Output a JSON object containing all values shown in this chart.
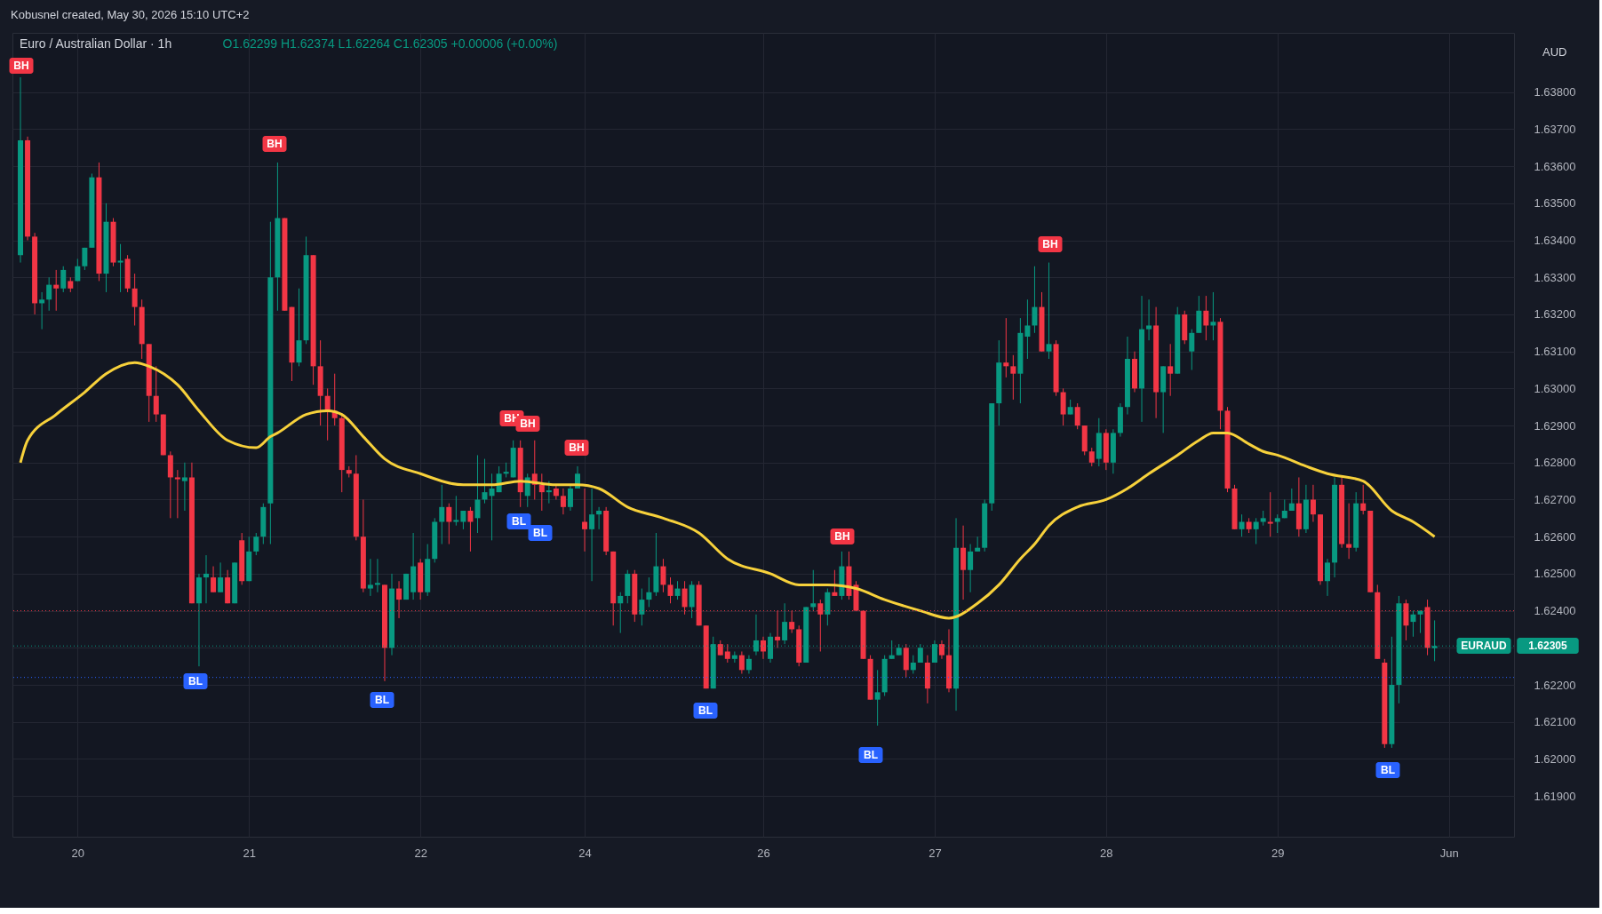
{
  "chart_data": {
    "type": "candlestick",
    "title": "Euro / Australian Dollar · 1h",
    "subtitle": "O1.62299 H1.62374 L1.62264 C1.62305 +0.00006 (+0.00%)",
    "categories": [
      null,
      null,
      null,
      null,
      null,
      null,
      null,
      null,
      "20",
      null,
      null,
      null,
      null,
      null,
      null,
      null,
      null,
      null,
      null,
      null,
      null,
      null,
      null,
      null,
      null,
      null,
      null,
      null,
      null,
      null,
      null,
      null,
      "21",
      null,
      null,
      null,
      null,
      null,
      null,
      null,
      null,
      null,
      null,
      null,
      null,
      null,
      null,
      null,
      null,
      null,
      null,
      null,
      null,
      null,
      null,
      null,
      "22",
      null,
      null,
      null,
      null,
      null,
      null,
      null,
      null,
      null,
      null,
      null,
      null,
      null,
      null,
      null,
      null,
      null,
      null,
      null,
      null,
      null,
      null,
      "24",
      null,
      null,
      null,
      null,
      null,
      null,
      null,
      null,
      null,
      null,
      null,
      null,
      null,
      null,
      null,
      null,
      null,
      null,
      null,
      null,
      null,
      null,
      null,
      null,
      "26",
      null,
      null,
      null,
      null,
      null,
      null,
      null,
      null,
      null,
      null,
      null,
      null,
      null,
      null,
      null,
      null,
      null,
      null,
      null,
      null,
      null,
      null,
      null,
      "27",
      null,
      null,
      null,
      null,
      null,
      null,
      null,
      null,
      null,
      null,
      null,
      null,
      null,
      null,
      null,
      null,
      null,
      null,
      null,
      null,
      null,
      null,
      null,
      "28",
      null,
      null,
      null,
      null,
      null,
      null,
      null,
      null,
      null,
      null,
      null,
      null,
      null,
      null,
      null,
      null,
      null,
      null,
      null,
      null,
      null,
      null,
      null,
      "29",
      null,
      null,
      null,
      null,
      null,
      null,
      null,
      null,
      null,
      null,
      null,
      null,
      null,
      null,
      null,
      null,
      null,
      null,
      null,
      null,
      null,
      null,
      null,
      "Jun",
      null,
      null,
      null,
      null,
      null,
      null,
      null,
      null
    ],
    "ohlc": [
      [
        1.6336,
        1.6384,
        1.6334,
        1.6367
      ],
      [
        1.6367,
        1.6368,
        1.634,
        1.6341
      ],
      [
        1.6341,
        1.6342,
        1.632,
        1.6323
      ],
      [
        1.6323,
        1.6326,
        1.6316,
        1.6324
      ],
      [
        1.6324,
        1.633,
        1.6321,
        1.6328
      ],
      [
        1.6328,
        1.6332,
        1.6321,
        1.6327
      ],
      [
        1.6327,
        1.6333,
        1.6326,
        1.6332
      ],
      [
        1.6329,
        1.633,
        1.6326,
        1.6327
      ],
      [
        1.6329,
        1.6335,
        1.6329,
        1.6333
      ],
      [
        1.6333,
        1.6338,
        1.6332,
        1.6338
      ],
      [
        1.6338,
        1.6358,
        1.6338,
        1.6357
      ],
      [
        1.6357,
        1.6361,
        1.6329,
        1.6331
      ],
      [
        1.6331,
        1.635,
        1.6326,
        1.6345
      ],
      [
        1.6345,
        1.6346,
        1.6333,
        1.6334
      ],
      [
        1.6334,
        1.6339,
        1.6326,
        1.63345
      ],
      [
        1.6335,
        1.6336,
        1.6326,
        1.6327
      ],
      [
        1.6327,
        1.6331,
        1.6317,
        1.6322
      ],
      [
        1.6322,
        1.6324,
        1.6308,
        1.6312
      ],
      [
        1.6312,
        1.6312,
        1.6291,
        1.6298
      ],
      [
        1.6298,
        1.6306,
        1.6291,
        1.6293
      ],
      [
        1.6293,
        1.6293,
        1.6282,
        1.6282
      ],
      [
        1.6282,
        1.6283,
        1.6265,
        1.6276
      ],
      [
        1.6276,
        1.6278,
        1.6265,
        1.62755
      ],
      [
        1.6275,
        1.628,
        1.6267,
        1.6276
      ],
      [
        1.6276,
        1.628,
        1.6242,
        1.6242
      ],
      [
        1.6242,
        1.625,
        1.6225,
        1.6249
      ],
      [
        1.6249,
        1.6255,
        1.6242,
        1.625
      ],
      [
        1.6249,
        1.6252,
        1.6245,
        1.6245
      ],
      [
        1.6245,
        1.6253,
        1.6245,
        1.6249
      ],
      [
        1.6249,
        1.6251,
        1.6242,
        1.6242
      ],
      [
        1.6242,
        1.6253,
        1.6242,
        1.6253
      ],
      [
        1.6259,
        1.6261,
        1.6247,
        1.6248
      ],
      [
        1.6248,
        1.626,
        1.6248,
        1.6256
      ],
      [
        1.6256,
        1.6261,
        1.6255,
        1.626
      ],
      [
        1.626,
        1.6269,
        1.6258,
        1.6268
      ],
      [
        1.6269,
        1.6345,
        1.6258,
        1.633
      ],
      [
        1.633,
        1.6361,
        1.6321,
        1.6346
      ],
      [
        1.6346,
        1.6346,
        1.6321,
        1.6321
      ],
      [
        1.6322,
        1.6322,
        1.6302,
        1.6307
      ],
      [
        1.6307,
        1.6327,
        1.6306,
        1.6313
      ],
      [
        1.6313,
        1.6341,
        1.6312,
        1.6336
      ],
      [
        1.6336,
        1.6336,
        1.6301,
        1.6306
      ],
      [
        1.6306,
        1.6313,
        1.629,
        1.6298
      ],
      [
        1.6298,
        1.63,
        1.6286,
        1.6294
      ],
      [
        1.6294,
        1.6304,
        1.629,
        1.6292
      ],
      [
        1.6292,
        1.6293,
        1.6272,
        1.6278
      ],
      [
        1.6278,
        1.6279,
        1.6276,
        1.6277
      ],
      [
        1.6277,
        1.6282,
        1.6259,
        1.626
      ],
      [
        1.626,
        1.627,
        1.6245,
        1.6246
      ],
      [
        1.6246,
        1.6254,
        1.6244,
        1.6247
      ],
      [
        1.6247,
        1.6254,
        1.6245,
        1.62475
      ],
      [
        1.6247,
        1.6247,
        1.6221,
        1.623
      ],
      [
        1.623,
        1.625,
        1.6228,
        1.6246
      ],
      [
        1.6246,
        1.6248,
        1.6238,
        1.6243
      ],
      [
        1.6243,
        1.625,
        1.6243,
        1.625
      ],
      [
        1.6245,
        1.6261,
        1.6243,
        1.6252
      ],
      [
        1.6253,
        1.6254,
        1.6243,
        1.6245
      ],
      [
        1.6245,
        1.6258,
        1.6244,
        1.6254
      ],
      [
        1.6254,
        1.6265,
        1.6253,
        1.6264
      ],
      [
        1.6264,
        1.6274,
        1.6258,
        1.6268
      ],
      [
        1.6268,
        1.6269,
        1.6258,
        1.6264
      ],
      [
        1.6264,
        1.6271,
        1.6263,
        1.62645
      ],
      [
        1.6264,
        1.6267,
        1.6262,
        1.6267
      ],
      [
        1.6267,
        1.6268,
        1.6256,
        1.6264
      ],
      [
        1.6265,
        1.6282,
        1.6261,
        1.627
      ],
      [
        1.627,
        1.6281,
        1.6269,
        1.6272
      ],
      [
        1.6271,
        1.6277,
        1.6259,
        1.6273
      ],
      [
        1.6272,
        1.6279,
        1.6272,
        1.6277
      ],
      [
        1.6277,
        1.628,
        1.6276,
        1.62775
      ],
      [
        1.6276,
        1.6286,
        1.6276,
        1.6284
      ],
      [
        1.6284,
        1.6286,
        1.6268,
        1.6272
      ],
      [
        1.6271,
        1.6277,
        1.6268,
        1.6276
      ],
      [
        1.6277,
        1.6286,
        1.627,
        1.6274
      ],
      [
        1.6274,
        1.6277,
        1.6267,
        1.6272
      ],
      [
        1.6272,
        1.6275,
        1.6269,
        1.62725
      ],
      [
        1.6273,
        1.6274,
        1.627,
        1.6271
      ],
      [
        1.6271,
        1.6273,
        1.6266,
        1.6268
      ],
      [
        1.6268,
        1.6274,
        1.6267,
        1.6273
      ],
      [
        1.6273,
        1.6279,
        1.6273,
        1.6277
      ],
      [
        1.6264,
        1.6273,
        1.6256,
        1.6262
      ],
      [
        1.6262,
        1.6273,
        1.6248,
        1.6266
      ],
      [
        1.6266,
        1.6268,
        1.6262,
        1.6267
      ],
      [
        1.6267,
        1.6268,
        1.6255,
        1.6256
      ],
      [
        1.6256,
        1.6256,
        1.6236,
        1.6242
      ],
      [
        1.6242,
        1.6245,
        1.6234,
        1.6244
      ],
      [
        1.6244,
        1.6251,
        1.6242,
        1.625
      ],
      [
        1.625,
        1.6251,
        1.6237,
        1.6239
      ],
      [
        1.6239,
        1.6246,
        1.6236,
        1.6243
      ],
      [
        1.6243,
        1.6249,
        1.6241,
        1.6245
      ],
      [
        1.6245,
        1.6261,
        1.6244,
        1.6252
      ],
      [
        1.6252,
        1.6254,
        1.6245,
        1.6247
      ],
      [
        1.6247,
        1.6249,
        1.6242,
        1.6244
      ],
      [
        1.6244,
        1.6248,
        1.6243,
        1.6246
      ],
      [
        1.6246,
        1.6248,
        1.6239,
        1.6241
      ],
      [
        1.6241,
        1.6248,
        1.6238,
        1.6247
      ],
      [
        1.6247,
        1.6248,
        1.6236,
        1.6236
      ],
      [
        1.6236,
        1.6236,
        1.6219,
        1.6219
      ],
      [
        1.6219,
        1.6233,
        1.6219,
        1.6231
      ],
      [
        1.6231,
        1.6232,
        1.6228,
        1.6228
      ],
      [
        1.6229,
        1.6231,
        1.6226,
        1.6227
      ],
      [
        1.6227,
        1.6229,
        1.6226,
        1.6228
      ],
      [
        1.6228,
        1.6229,
        1.6223,
        1.6224
      ],
      [
        1.6224,
        1.6228,
        1.6223,
        1.6227
      ],
      [
        1.6229,
        1.6239,
        1.6228,
        1.6232
      ],
      [
        1.6232,
        1.6233,
        1.6227,
        1.6229
      ],
      [
        1.6227,
        1.6234,
        1.6226,
        1.6233
      ],
      [
        1.6233,
        1.624,
        1.623,
        1.6232
      ],
      [
        1.6232,
        1.6242,
        1.6231,
        1.6237
      ],
      [
        1.6237,
        1.624,
        1.6234,
        1.6235
      ],
      [
        1.6235,
        1.6236,
        1.6225,
        1.6226
      ],
      [
        1.6226,
        1.6241,
        1.6226,
        1.6241
      ],
      [
        1.6241,
        1.6251,
        1.624,
        1.6242
      ],
      [
        1.6242,
        1.6243,
        1.6229,
        1.6239
      ],
      [
        1.6239,
        1.6246,
        1.6236,
        1.6245
      ],
      [
        1.6245,
        1.6251,
        1.6244,
        1.6244
      ],
      [
        1.6244,
        1.6256,
        1.6243,
        1.6252
      ],
      [
        1.6252,
        1.6256,
        1.6243,
        1.6244
      ],
      [
        1.6247,
        1.6248,
        1.624,
        1.624
      ],
      [
        1.624,
        1.624,
        1.6227,
        1.6227
      ],
      [
        1.6227,
        1.6228,
        1.6216,
        1.6216
      ],
      [
        1.6216,
        1.6224,
        1.6209,
        1.6218
      ],
      [
        1.6218,
        1.6228,
        1.6217,
        1.6227
      ],
      [
        1.6227,
        1.6232,
        1.6227,
        1.6228
      ],
      [
        1.6228,
        1.6231,
        1.6228,
        1.623
      ],
      [
        1.623,
        1.6231,
        1.6222,
        1.6224
      ],
      [
        1.6224,
        1.6228,
        1.6223,
        1.6226
      ],
      [
        1.6226,
        1.6231,
        1.6226,
        1.623
      ],
      [
        1.6226,
        1.6228,
        1.6215,
        1.6219
      ],
      [
        1.6226,
        1.6232,
        1.6226,
        1.6231
      ],
      [
        1.6231,
        1.6232,
        1.6227,
        1.6228
      ],
      [
        1.6228,
        1.6235,
        1.6218,
        1.6219
      ],
      [
        1.6219,
        1.6265,
        1.6213,
        1.6257
      ],
      [
        1.6257,
        1.6263,
        1.6243,
        1.6251
      ],
      [
        1.6251,
        1.6258,
        1.6245,
        1.6256
      ],
      [
        1.6256,
        1.626,
        1.6256,
        1.6257
      ],
      [
        1.6257,
        1.627,
        1.6256,
        1.6269
      ],
      [
        1.6269,
        1.6296,
        1.6267,
        1.6296
      ],
      [
        1.6296,
        1.6313,
        1.629,
        1.6307
      ],
      [
        1.6307,
        1.6319,
        1.6303,
        1.6306
      ],
      [
        1.6306,
        1.6309,
        1.6297,
        1.6304
      ],
      [
        1.6304,
        1.6319,
        1.6296,
        1.6315
      ],
      [
        1.6314,
        1.6324,
        1.6308,
        1.6317
      ],
      [
        1.6317,
        1.6333,
        1.6315,
        1.6322
      ],
      [
        1.6322,
        1.6326,
        1.631,
        1.631
      ],
      [
        1.631,
        1.6334,
        1.6308,
        1.6312
      ],
      [
        1.6312,
        1.6313,
        1.6298,
        1.6299
      ],
      [
        1.6299,
        1.63,
        1.629,
        1.6293
      ],
      [
        1.6293,
        1.6297,
        1.6293,
        1.6295
      ],
      [
        1.6295,
        1.6296,
        1.6289,
        1.629
      ],
      [
        1.629,
        1.629,
        1.6282,
        1.6283
      ],
      [
        1.6283,
        1.6284,
        1.6279,
        1.628
      ],
      [
        1.6281,
        1.6292,
        1.6279,
        1.6288
      ],
      [
        1.6288,
        1.6289,
        1.6278,
        1.628
      ],
      [
        1.628,
        1.6289,
        1.6277,
        1.6288
      ],
      [
        1.6288,
        1.6296,
        1.6287,
        1.6295
      ],
      [
        1.6295,
        1.6314,
        1.6293,
        1.6308
      ],
      [
        1.6308,
        1.631,
        1.6299,
        1.63
      ],
      [
        1.63,
        1.6325,
        1.6291,
        1.6316
      ],
      [
        1.6316,
        1.6324,
        1.6313,
        1.6317
      ],
      [
        1.6317,
        1.6322,
        1.6292,
        1.6299
      ],
      [
        1.6299,
        1.6306,
        1.6288,
        1.6306
      ],
      [
        1.6306,
        1.6312,
        1.6298,
        1.6304
      ],
      [
        1.6304,
        1.6322,
        1.6304,
        1.632
      ],
      [
        1.632,
        1.6321,
        1.6312,
        1.6313
      ],
      [
        1.631,
        1.6316,
        1.6305,
        1.6315
      ],
      [
        1.6315,
        1.6325,
        1.6315,
        1.6321
      ],
      [
        1.6321,
        1.6325,
        1.6313,
        1.6317
      ],
      [
        1.6317,
        1.6326,
        1.6313,
        1.6318
      ],
      [
        1.6318,
        1.6319,
        1.6289,
        1.6294
      ],
      [
        1.6294,
        1.6295,
        1.6272,
        1.6273
      ],
      [
        1.6273,
        1.6274,
        1.6262,
        1.6262
      ],
      [
        1.6262,
        1.6266,
        1.626,
        1.6264
      ],
      [
        1.6264,
        1.6265,
        1.6261,
        1.6262
      ],
      [
        1.6262,
        1.6265,
        1.6258,
        1.6264
      ],
      [
        1.6264,
        1.6267,
        1.6263,
        1.6265
      ],
      [
        1.6264,
        1.6272,
        1.626,
        1.62635
      ],
      [
        1.6264,
        1.6266,
        1.6261,
        1.6265
      ],
      [
        1.6265,
        1.627,
        1.6265,
        1.6267
      ],
      [
        1.6267,
        1.6273,
        1.6267,
        1.6269
      ],
      [
        1.6269,
        1.6276,
        1.626,
        1.6262
      ],
      [
        1.6262,
        1.6274,
        1.6261,
        1.627
      ],
      [
        1.627,
        1.6274,
        1.6264,
        1.6266
      ],
      [
        1.6266,
        1.6266,
        1.6247,
        1.6248
      ],
      [
        1.6248,
        1.6254,
        1.6244,
        1.6253
      ],
      [
        1.6253,
        1.6276,
        1.6249,
        1.6274
      ],
      [
        1.6274,
        1.6276,
        1.6257,
        1.6258
      ],
      [
        1.6258,
        1.6269,
        1.6254,
        1.6257
      ],
      [
        1.6257,
        1.6272,
        1.6256,
        1.6269
      ],
      [
        1.6269,
        1.6274,
        1.6266,
        1.6267
      ],
      [
        1.6267,
        1.6267,
        1.6245,
        1.6245
      ],
      [
        1.6245,
        1.6247,
        1.6227,
        1.6227
      ],
      [
        1.6226,
        1.6227,
        1.6203,
        1.6204
      ],
      [
        1.6204,
        1.6233,
        1.6203,
        1.622
      ],
      [
        1.622,
        1.6244,
        1.6215,
        1.6242
      ],
      [
        1.6242,
        1.6243,
        1.6232,
        1.6236
      ],
      [
        1.6237,
        1.624,
        1.6233,
        1.6239
      ],
      [
        1.6239,
        1.624,
        1.6234,
        1.624
      ],
      [
        1.6241,
        1.6243,
        1.6228,
        1.623
      ],
      [
        1.62299,
        1.62374,
        1.62264,
        1.62305
      ],
      null,
      null,
      null,
      null,
      null,
      null,
      null,
      null,
      null,
      null
    ],
    "series": [
      {
        "type": "line",
        "color": "#f7d13b",
        "values": [
          1.628,
          1.6286,
          null,
          null,
          null,
          1.6293,
          null,
          null,
          null,
          1.6299,
          null,
          null,
          1.6304,
          null,
          null,
          null,
          1.6307,
          null,
          1.6306,
          null,
          null,
          null,
          1.6301,
          null,
          null,
          1.6294,
          null,
          null,
          null,
          1.6286,
          null,
          null,
          null,
          1.6284,
          null,
          1.6287,
          1.6288,
          null,
          null,
          null,
          1.6293,
          null,
          null,
          1.6294,
          null,
          1.6293,
          null,
          null,
          1.6287,
          null,
          null,
          1.6281,
          null,
          null,
          null,
          null,
          1.6277,
          null,
          null,
          null,
          null,
          null,
          1.6274,
          null,
          null,
          null,
          1.6274,
          null,
          null,
          null,
          1.6275,
          null,
          null,
          null,
          null,
          1.6274,
          null,
          null,
          1.6274,
          null,
          null,
          1.6273,
          null,
          null,
          null,
          1.6268,
          null,
          null,
          null,
          null,
          1.6265,
          null,
          null,
          null,
          null,
          1.6261,
          null,
          null,
          null,
          1.6254,
          null,
          null,
          null,
          null,
          null,
          1.625,
          null,
          null,
          null,
          1.6247,
          null,
          null,
          null,
          1.6247,
          null,
          null,
          null,
          1.6246,
          null,
          null,
          null,
          1.6243,
          null,
          null,
          null,
          null,
          1.624,
          null,
          null,
          null,
          1.6238,
          null,
          null,
          null,
          1.6242,
          null,
          null,
          1.6247,
          null,
          null,
          1.6254,
          null,
          1.6258,
          null,
          1.6263,
          null,
          null,
          null,
          1.6268,
          null,
          null,
          null,
          1.627,
          null,
          null,
          1.6273,
          null,
          null,
          1.6277,
          null,
          null,
          null,
          1.6282,
          null,
          null,
          1.6286,
          null,
          1.6288,
          null,
          1.6288,
          null,
          null,
          1.6285,
          null,
          1.6283,
          null,
          1.6282,
          null,
          null,
          null,
          1.6279,
          null,
          null,
          1.6277,
          null,
          null,
          null,
          null,
          1.6275,
          null,
          null,
          null,
          1.6267,
          null,
          null,
          1.6264,
          null,
          null,
          1.626,
          null,
          null,
          null,
          null,
          null,
          null,
          null,
          null,
          null,
          null
        ]
      }
    ],
    "ylim": [
      1.6179,
      1.6396
    ],
    "yticks": [
      {
        "value": 1.619,
        "label": "1.61900"
      },
      {
        "value": 1.62,
        "label": "1.62000"
      },
      {
        "value": 1.621,
        "label": "1.62100"
      },
      {
        "value": 1.622,
        "label": "1.62200"
      },
      {
        "value": 1.623,
        "label": null
      },
      {
        "value": 1.624,
        "label": "1.62400"
      },
      {
        "value": 1.625,
        "label": "1.62500"
      },
      {
        "value": 1.626,
        "label": "1.62600"
      },
      {
        "value": 1.627,
        "label": "1.62700"
      },
      {
        "value": 1.628,
        "label": "1.62800"
      },
      {
        "value": 1.629,
        "label": "1.62900"
      },
      {
        "value": 1.63,
        "label": "1.63000"
      },
      {
        "value": 1.631,
        "label": "1.63100"
      },
      {
        "value": 1.632,
        "label": "1.63200"
      },
      {
        "value": 1.633,
        "label": "1.63300"
      },
      {
        "value": 1.634,
        "label": "1.63400"
      },
      {
        "value": 1.635,
        "label": "1.63500"
      },
      {
        "value": 1.636,
        "label": "1.63600"
      },
      {
        "value": 1.637,
        "label": "1.63700"
      },
      {
        "value": 1.638,
        "label": "1.63800"
      }
    ],
    "grid": true,
    "ref_lines": [
      {
        "axis": "y",
        "value": 1.624,
        "color": "#f23645",
        "line_style": "dotted"
      },
      {
        "axis": "y",
        "value": 1.62305,
        "color": "#089981",
        "line_style": "dotted"
      },
      {
        "axis": "y",
        "value": 1.6222,
        "color": "#2962ff",
        "line_style": "dotted"
      }
    ],
    "annotations": [
      "Kobusnel created, May 30, 2026 15:10 UTC+2",
      "AUD",
      "EURAUD",
      "1.62305",
      "BH",
      "BH",
      "BH",
      "BH",
      "BH",
      "BH",
      "BH",
      "BL",
      "BL",
      "BL",
      "BL",
      "BL",
      "BL",
      "BL"
    ]
  }
}
